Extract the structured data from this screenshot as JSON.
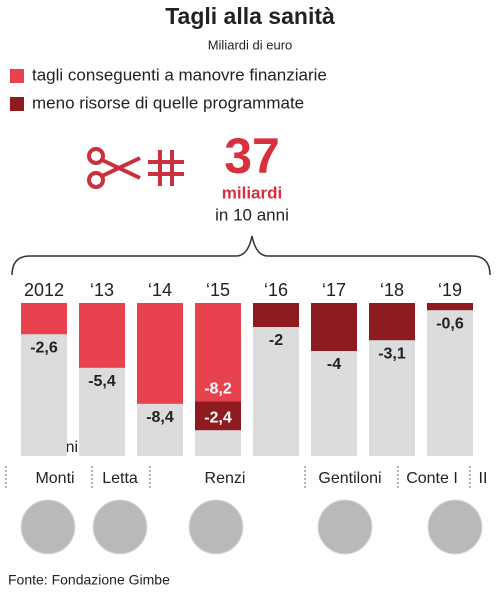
{
  "chart_data": {
    "type": "bar",
    "title": "Tagli alla sanità",
    "subtitle": "Miliardi di euro",
    "categories": [
      "2012",
      "‘13",
      "‘14",
      "‘15",
      "‘16",
      "‘17",
      "‘18",
      "‘19"
    ],
    "series": [
      {
        "name": "tagli conseguenti a manovre finanziarie",
        "color": "#e8424f",
        "values": [
          -2.6,
          -5.4,
          -8.4,
          -8.2,
          null,
          null,
          null,
          null
        ],
        "value_labels": [
          "-2,6",
          "-5,4",
          "-8,4",
          "-8,2",
          null,
          null,
          null,
          null
        ]
      },
      {
        "name": "meno risorse di quelle programmate",
        "color": "#8e1b1f",
        "values": [
          null,
          null,
          null,
          -2.4,
          -2,
          -4,
          -3.1,
          -0.6
        ],
        "value_labels": [
          null,
          null,
          null,
          "-2,4",
          "-2",
          "-4",
          "-3,1",
          "-0,6"
        ]
      }
    ],
    "stacked": true,
    "total": 37,
    "total_unit": "miliardi",
    "total_period": "in 10 anni",
    "governments_label": "Governi",
    "governments": [
      "Monti",
      "Letta",
      "Renzi",
      "Gentiloni",
      "Conte I",
      "II"
    ],
    "source": "Fonte: Fondazione Gimbe"
  }
}
